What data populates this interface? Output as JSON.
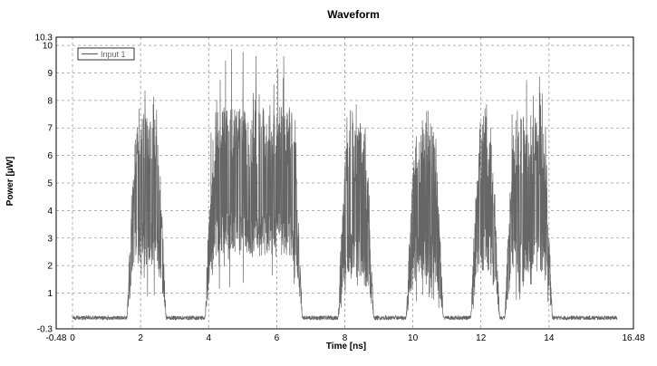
{
  "chart_data": {
    "type": "line",
    "title": "Waveform",
    "xlabel": "Time [ns]",
    "ylabel": "Power [µW]",
    "xlim": [
      -0.48,
      16.48
    ],
    "ylim": [
      -0.3,
      10.3
    ],
    "x_ticks": [
      -0.48,
      0,
      2,
      4,
      6,
      8,
      10,
      12,
      14,
      16.48
    ],
    "y_ticks": [
      -0.3,
      1,
      2,
      3,
      4,
      5,
      6,
      7,
      8,
      9,
      10,
      10.3
    ],
    "grid": true,
    "legend_position": "top-left",
    "series": [
      {
        "name": "Input 1",
        "color": "#666666",
        "noise_floor": 0.1,
        "bursts": [
          {
            "start": 1.6,
            "end": 2.75,
            "min": 2.0,
            "max": 7.5,
            "peak": 8.7
          },
          {
            "start": 3.9,
            "end": 6.75,
            "min": 2.3,
            "max": 7.8,
            "peak": 10.0
          },
          {
            "start": 7.8,
            "end": 8.85,
            "min": 1.5,
            "max": 7.2,
            "peak": 8.0
          },
          {
            "start": 9.8,
            "end": 10.9,
            "min": 1.5,
            "max": 7.3,
            "peak": 7.9
          },
          {
            "start": 11.7,
            "end": 12.55,
            "min": 1.8,
            "max": 7.2,
            "peak": 7.9
          },
          {
            "start": 12.7,
            "end": 14.1,
            "min": 1.7,
            "max": 7.5,
            "peak": 9.1
          }
        ]
      }
    ]
  }
}
